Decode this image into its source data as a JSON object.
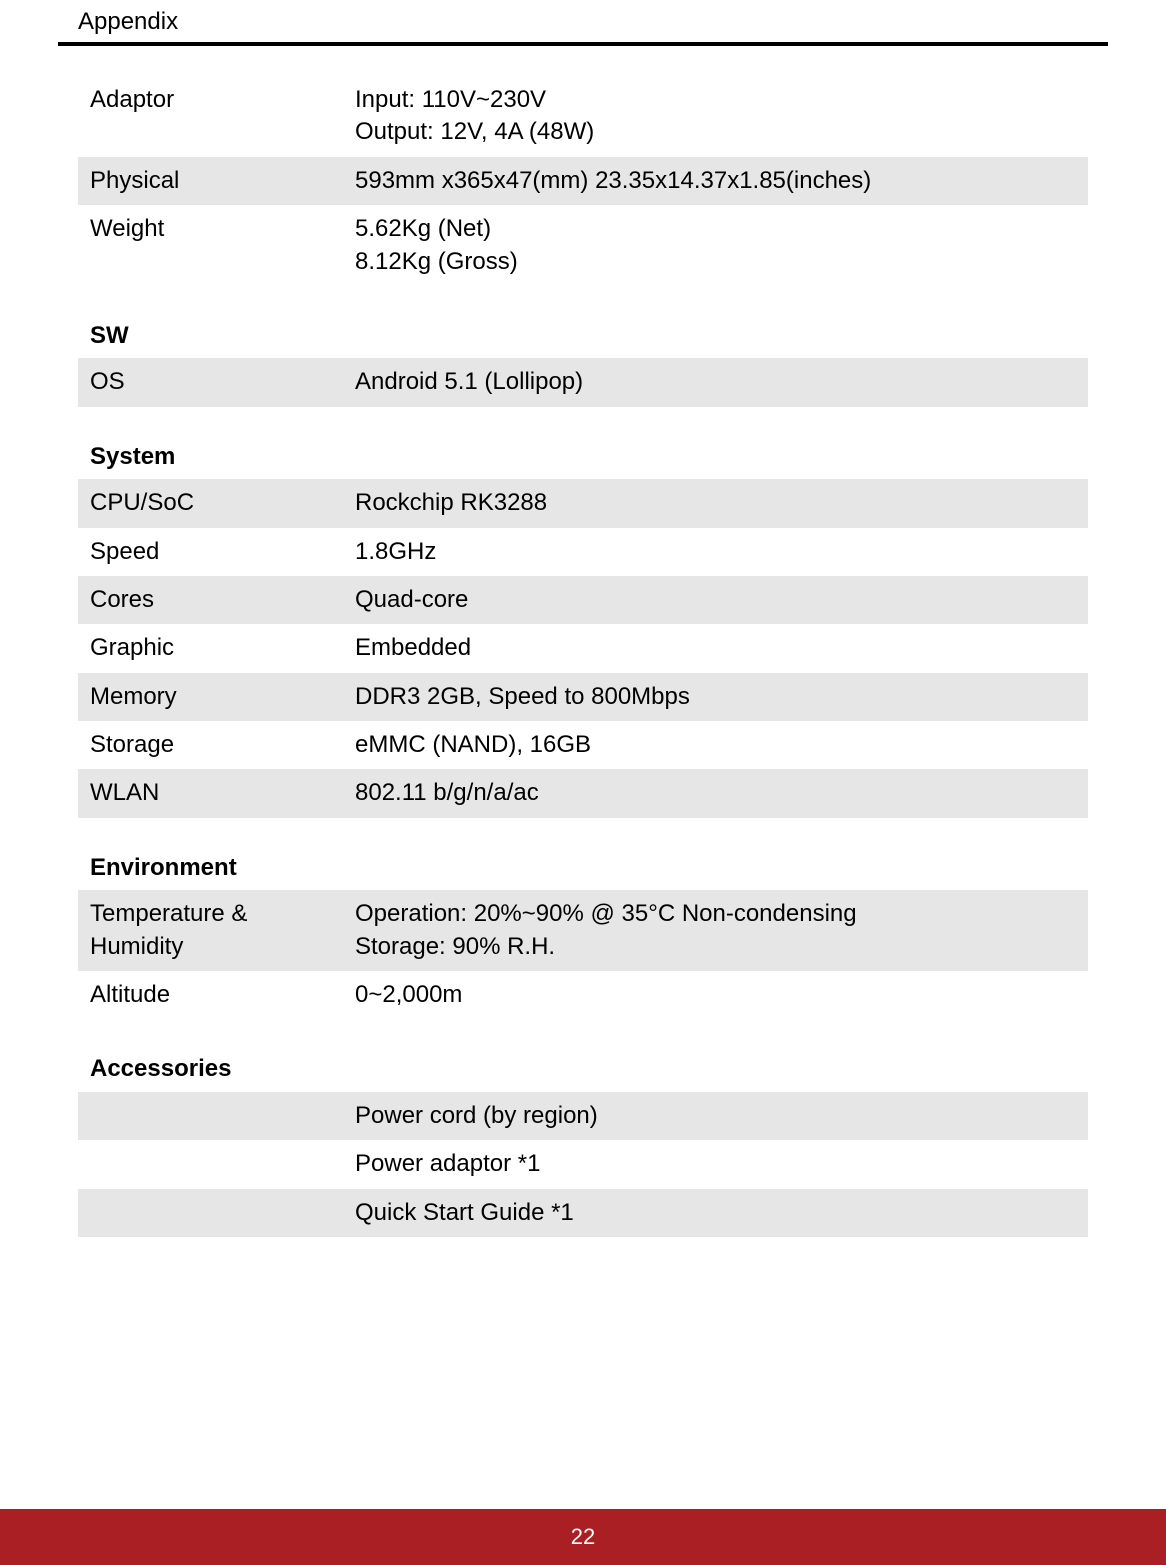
{
  "header": {
    "title": "Appendix"
  },
  "colors": {
    "shaded_row_bg": "#e6e6e6",
    "footer_bg": "#a91f24",
    "footer_text": "#ffffff",
    "text": "#000000",
    "rule": "#000000"
  },
  "typography": {
    "body_fontsize_pt": 18,
    "header_fontsize_pt": 18,
    "font_family": "Arial"
  },
  "footer": {
    "page_number": "22"
  },
  "sections": {
    "top": {
      "rows": [
        {
          "label": "Adaptor",
          "value": "Input: 110V~230V\nOutput: 12V, 4A (48W)",
          "shaded": false
        },
        {
          "label": "Physical",
          "value": "593mm x365x47(mm)  23.35x14.37x1.85(inches)",
          "shaded": true
        },
        {
          "label": "Weight",
          "value": "5.62Kg (Net)\n8.12Kg (Gross)",
          "shaded": false
        }
      ]
    },
    "sw": {
      "heading": "SW",
      "rows": [
        {
          "label": "OS",
          "value": "Android 5.1 (Lollipop)",
          "shaded": true
        }
      ]
    },
    "system": {
      "heading": "System",
      "rows": [
        {
          "label": "CPU/SoC",
          "value": "Rockchip RK3288",
          "shaded": true
        },
        {
          "label": "Speed",
          "value": "1.8GHz",
          "shaded": false
        },
        {
          "label": "Cores",
          "value": "Quad-core",
          "shaded": true
        },
        {
          "label": "Graphic",
          "value": "Embedded",
          "shaded": false
        },
        {
          "label": "Memory",
          "value": "DDR3 2GB, Speed to 800Mbps",
          "shaded": true
        },
        {
          "label": "Storage",
          "value": "eMMC (NAND), 16GB",
          "shaded": false
        },
        {
          "label": "WLAN",
          "value": "802.11 b/g/n/a/ac",
          "shaded": true
        }
      ]
    },
    "environment": {
      "heading": "Environment",
      "rows": [
        {
          "label": "Temperature & Humidity",
          "value": "Operation: 20%~90% @ 35°C Non-condensing\nStorage: 90% R.H.",
          "shaded": true
        },
        {
          "label": "Altitude",
          "value": "0~2,000m",
          "shaded": false
        }
      ]
    },
    "accessories": {
      "heading": "Accessories",
      "rows": [
        {
          "label": "",
          "value": "Power cord (by region)",
          "shaded": true
        },
        {
          "label": "",
          "value": "Power adaptor *1",
          "shaded": false
        },
        {
          "label": "",
          "value": "Quick Start Guide *1",
          "shaded": true
        }
      ]
    }
  }
}
